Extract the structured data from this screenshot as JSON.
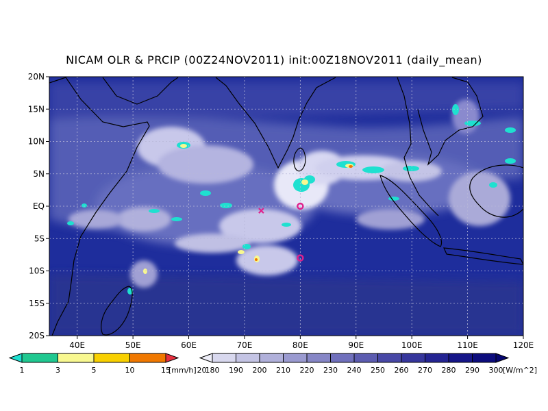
{
  "title": "NICAM OLR & PRCIP (00Z24NOV2011) init:00Z18NOV2011 (daily_mean)",
  "map": {
    "lon_range": [
      35,
      120
    ],
    "lat_range": [
      -20,
      20
    ],
    "grid": true,
    "lat_ticks": [
      {
        "value": 20,
        "label": "20N"
      },
      {
        "value": 15,
        "label": "15N"
      },
      {
        "value": 10,
        "label": "10N"
      },
      {
        "value": 5,
        "label": "5N"
      },
      {
        "value": 0,
        "label": "EQ"
      },
      {
        "value": -5,
        "label": "5S"
      },
      {
        "value": -10,
        "label": "10S"
      },
      {
        "value": -15,
        "label": "15S"
      },
      {
        "value": -20,
        "label": "20S"
      }
    ],
    "lon_ticks": [
      {
        "value": 40,
        "label": "40E"
      },
      {
        "value": 50,
        "label": "50E"
      },
      {
        "value": 60,
        "label": "60E"
      },
      {
        "value": 70,
        "label": "70E"
      },
      {
        "value": 80,
        "label": "80E"
      },
      {
        "value": 90,
        "label": "90E"
      },
      {
        "value": 100,
        "label": "100E"
      },
      {
        "value": 110,
        "label": "110E"
      },
      {
        "value": 120,
        "label": "120E"
      }
    ],
    "markers": [
      {
        "lon": 80,
        "lat": 0,
        "symbol": "o",
        "color": "#e0208c"
      },
      {
        "lon": 80,
        "lat": -8,
        "symbol": "o",
        "color": "#e0208c"
      },
      {
        "lon": 73,
        "lat": -0.7,
        "symbol": "x",
        "color": "#e0208c"
      }
    ],
    "ocean_color": "#1b2a9a"
  },
  "precip_colorbar": {
    "levels": [
      "1",
      "3",
      "5",
      "10",
      "15",
      "20"
    ],
    "unit": "[mm/h]",
    "colors": [
      "#1ee0d0",
      "#20c890",
      "#f8f890",
      "#f8d000",
      "#f07800",
      "#e83040"
    ]
  },
  "olr_colorbar": {
    "levels": [
      "180",
      "190",
      "200",
      "210",
      "220",
      "230",
      "240",
      "250",
      "260",
      "270",
      "280",
      "290",
      "300"
    ],
    "unit": "[W/m^2]",
    "colors": [
      "#eeeef8",
      "#d8d8ee",
      "#c4c4e4",
      "#b0b0da",
      "#9a9ad0",
      "#8686c6",
      "#7070bc",
      "#5c5cb0",
      "#4848a6",
      "#36369c",
      "#242492",
      "#161688",
      "#0c0c7c",
      "#060670"
    ]
  }
}
